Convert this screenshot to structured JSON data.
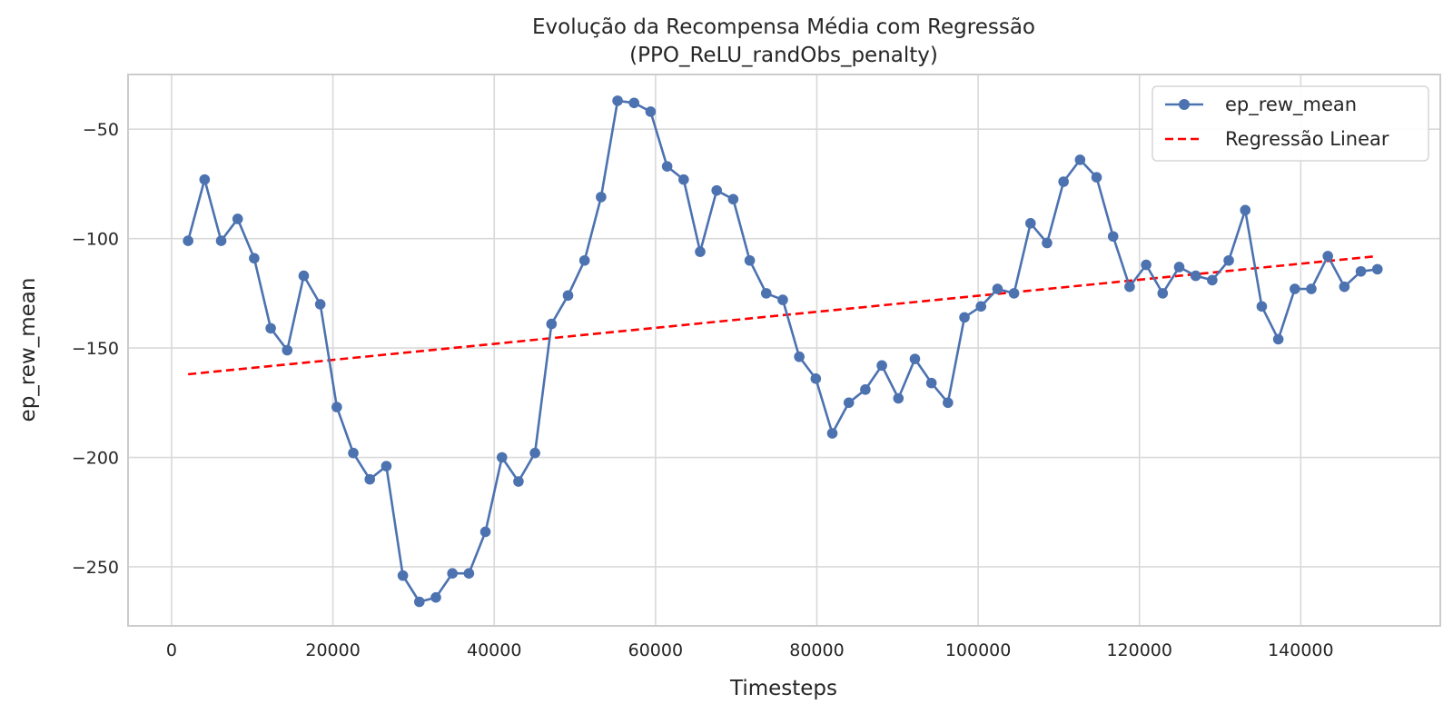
{
  "chart_data": {
    "type": "line",
    "title": "Evolução da Recompensa Média com Regressão",
    "subtitle": "(PPO_ReLU_randObs_penalty)",
    "xlabel": "Timesteps",
    "ylabel": "ep_rew_mean",
    "xlim": [
      -5400,
      157300
    ],
    "ylim": [
      -277,
      -25
    ],
    "xticks": [
      0,
      20000,
      40000,
      60000,
      80000,
      100000,
      120000,
      140000
    ],
    "yticks": [
      -250,
      -200,
      -150,
      -100,
      -50
    ],
    "ytick_labels": [
      "−250",
      "−200",
      "−150",
      "−100",
      "−50"
    ],
    "grid": true,
    "legend_position": "top-right",
    "colors": {
      "series": "#4c72b0",
      "regression": "#ff0000",
      "grid": "#d9d9d9",
      "frame": "#cccccc"
    },
    "series": [
      {
        "name": "ep_rew_mean",
        "style": "solid line with circle markers",
        "x": [
          2048,
          4096,
          6144,
          8192,
          10240,
          12288,
          14336,
          16384,
          18432,
          20480,
          22528,
          24576,
          26624,
          28672,
          30720,
          32768,
          34816,
          36864,
          38912,
          40960,
          43008,
          45056,
          47104,
          49152,
          51200,
          53248,
          55296,
          57344,
          59392,
          61440,
          63488,
          65536,
          67584,
          69632,
          71680,
          73728,
          75776,
          77824,
          79872,
          81920,
          83968,
          86016,
          88064,
          90112,
          92160,
          94208,
          96256,
          98304,
          100352,
          102400,
          104448,
          106496,
          108544,
          110592,
          112640,
          114688,
          116736,
          118784,
          120832,
          122880,
          124928,
          126976,
          129024,
          131072,
          133120,
          135168,
          137216,
          139264,
          141312,
          143360,
          145408,
          147456,
          149504
        ],
        "y": [
          -101,
          -73,
          -101,
          -91,
          -109,
          -141,
          -151,
          -117,
          -130,
          -177,
          -198,
          -210,
          -204,
          -254,
          -266,
          -264,
          -253,
          -253,
          -234,
          -200,
          -211,
          -198,
          -139,
          -126,
          -110,
          -81,
          -37,
          -38,
          -42,
          -67,
          -73,
          -106,
          -78,
          -82,
          -110,
          -125,
          -128,
          -154,
          -164,
          -189,
          -175,
          -169,
          -158,
          -173,
          -155,
          -166,
          -175,
          -136,
          -131,
          -123,
          -125,
          -93,
          -102,
          -74,
          -64,
          -72,
          -99,
          -122,
          -112,
          -125,
          -113,
          -117,
          -119,
          -110,
          -87,
          -131,
          -146,
          -123,
          -123,
          -108,
          -122,
          -115,
          -114
        ]
      },
      {
        "name": "Regressão Linear",
        "style": "dashed line",
        "x": [
          2048,
          149504
        ],
        "y": [
          -162,
          -108
        ]
      }
    ]
  }
}
